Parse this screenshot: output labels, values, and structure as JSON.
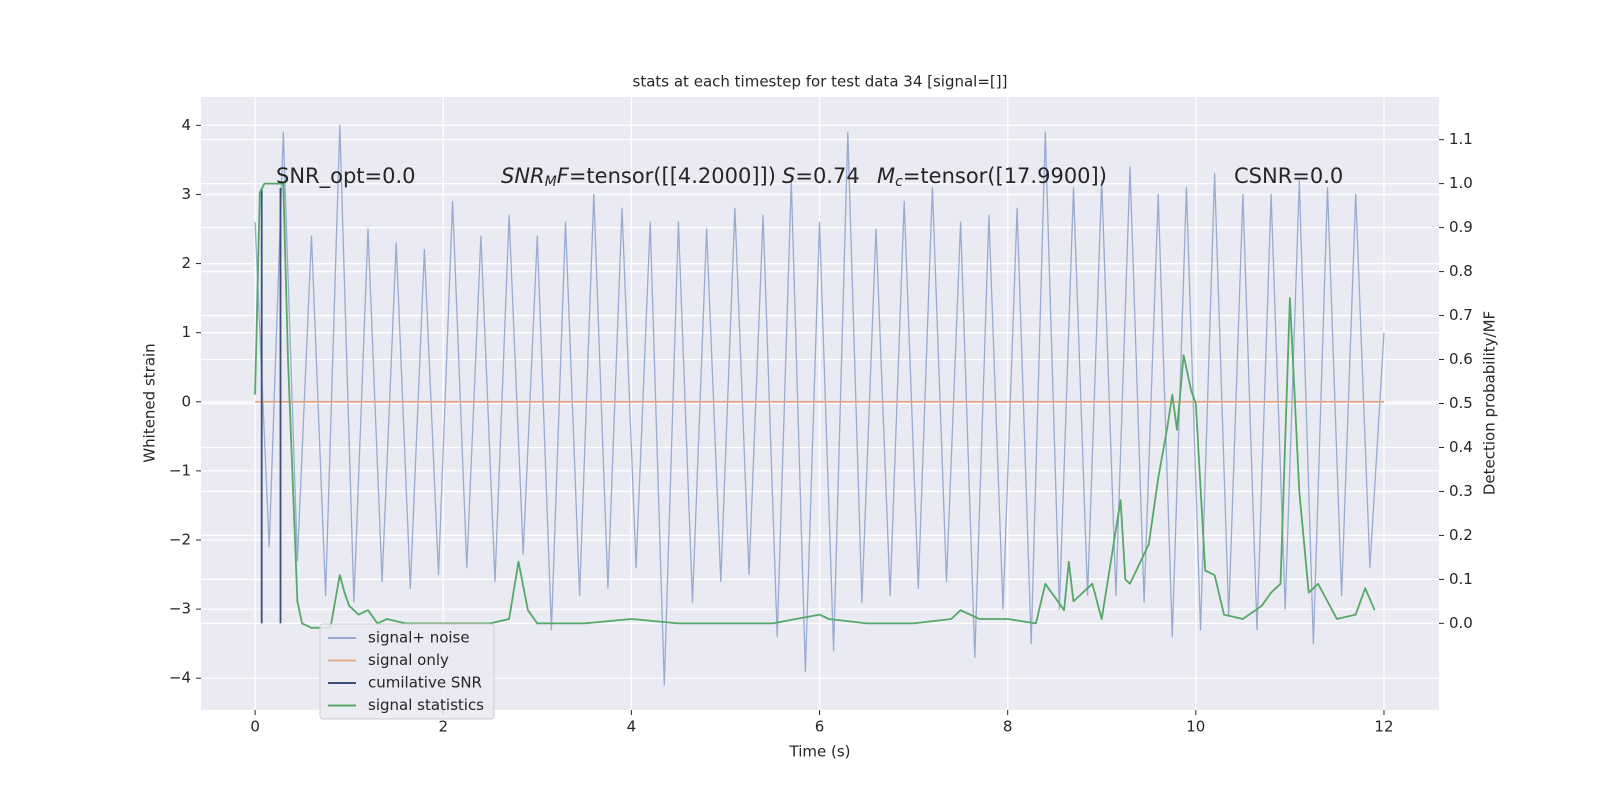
{
  "chart_data": {
    "type": "line",
    "title": "stats at each timestep for test data 34 [signal=[]]",
    "xlabel": "Time (s)",
    "ylabel": "Whitened strain",
    "y2label": "Detection probability/MF",
    "xlim": [
      -0.575,
      12.585
    ],
    "ylim": [
      -4.46,
      4.41
    ],
    "y2lim": [
      -0.197,
      1.197
    ],
    "xticks": [
      0,
      2,
      4,
      6,
      8,
      10,
      12
    ],
    "yticks": [
      {
        "value": -4,
        "label": "−4"
      },
      {
        "value": -3,
        "label": "−3"
      },
      {
        "value": -2,
        "label": "−2"
      },
      {
        "value": -1,
        "label": "−1"
      },
      0,
      1,
      2,
      3,
      4
    ],
    "y2ticks": [
      {
        "value": 0,
        "label": "0.0"
      },
      {
        "value": 0.1,
        "label": "0.1"
      },
      {
        "value": 0.2,
        "label": "0.2"
      },
      {
        "value": 0.3,
        "label": "0.3"
      },
      {
        "value": 0.4,
        "label": "0.4"
      },
      {
        "value": 0.5,
        "label": "0.5"
      },
      {
        "value": 0.6,
        "label": "0.6"
      },
      {
        "value": 0.7,
        "label": "0.7"
      },
      {
        "value": 0.8,
        "label": "0.8"
      },
      {
        "value": 0.9,
        "label": "0.9"
      },
      {
        "value": 1,
        "label": "1.0"
      },
      {
        "value": 1.1,
        "label": "1.1"
      }
    ],
    "grid": true,
    "legend": "lower left",
    "series": [
      {
        "name": "signal+ noise",
        "color": "#99abd0",
        "x": [
          0,
          0.15,
          0.3,
          0.45,
          0.6,
          0.75,
          0.9,
          1.05,
          1.2,
          1.35,
          1.5,
          1.65,
          1.8,
          1.95,
          2.1,
          2.25,
          2.4,
          2.55,
          2.7,
          2.85,
          3,
          3.15,
          3.3,
          3.45,
          3.6,
          3.75,
          3.9,
          4.05,
          4.2,
          4.35,
          4.5,
          4.65,
          4.8,
          4.95,
          5.1,
          5.25,
          5.4,
          5.55,
          5.7,
          5.85,
          6,
          6.15,
          6.3,
          6.45,
          6.6,
          6.75,
          6.9,
          7.05,
          7.2,
          7.35,
          7.5,
          7.65,
          7.8,
          7.95,
          8.1,
          8.25,
          8.4,
          8.55,
          8.7,
          8.85,
          9,
          9.15,
          9.3,
          9.45,
          9.6,
          9.75,
          9.9,
          10.05,
          10.2,
          10.35,
          10.5,
          10.65,
          10.8,
          10.95,
          11.1,
          11.25,
          11.4,
          11.55,
          11.7,
          11.85,
          12
        ],
        "values": [
          2.6,
          -2.1,
          3.9,
          -2.3,
          2.4,
          -2.8,
          4.0,
          -2.9,
          2.5,
          -2.6,
          2.3,
          -2.7,
          2.2,
          -2.5,
          2.9,
          -2.4,
          2.4,
          -2.6,
          2.7,
          -2.2,
          2.4,
          -3.3,
          2.6,
          -2.8,
          3.0,
          -2.7,
          2.8,
          -2.4,
          2.6,
          -4.1,
          2.6,
          -2.9,
          2.5,
          -2.6,
          2.8,
          -2.5,
          2.7,
          -3.4,
          3.2,
          -3.9,
          2.6,
          -3.6,
          3.9,
          -2.9,
          2.5,
          -2.8,
          2.9,
          -2.7,
          3.1,
          -2.6,
          2.6,
          -3.7,
          2.7,
          -3.0,
          2.8,
          -3.5,
          3.9,
          -3.0,
          3.1,
          -2.8,
          3.2,
          -2.8,
          3.4,
          -2.9,
          3.0,
          -3.4,
          3.1,
          -3.3,
          3.3,
          -3.1,
          3.0,
          -3.3,
          3.0,
          -3.0,
          3.2,
          -3.5,
          3.1,
          -2.8,
          3.0,
          -2.4,
          1.0
        ]
      },
      {
        "name": "signal only",
        "color": "#e3a98b",
        "x": [
          0,
          12
        ],
        "values": [
          0,
          0
        ]
      },
      {
        "name": "cumilative SNR",
        "color": "#3b4f7a",
        "axis": "y2",
        "x": [
          0.07,
          0.07,
          0.17,
          0.27,
          0.27
        ],
        "values": [
          0,
          0.99,
          null,
          0,
          0.99
        ]
      },
      {
        "name": "signal statistics",
        "color": "#55a868",
        "axis": "y2",
        "x": [
          0,
          0.05,
          0.1,
          0.2,
          0.3,
          0.35,
          0.45,
          0.5,
          0.6,
          0.8,
          0.9,
          0.95,
          1.0,
          1.1,
          1.2,
          1.3,
          1.4,
          1.6,
          2.0,
          2.5,
          2.7,
          2.8,
          2.9,
          3.0,
          3.5,
          4.0,
          4.5,
          5.0,
          5.5,
          6.0,
          6.1,
          6.5,
          7.0,
          7.4,
          7.5,
          7.7,
          8.0,
          8.3,
          8.4,
          8.6,
          8.65,
          8.7,
          8.9,
          9.0,
          9.2,
          9.25,
          9.3,
          9.5,
          9.6,
          9.7,
          9.75,
          9.8,
          9.87,
          9.95,
          10.0,
          10.1,
          10.2,
          10.3,
          10.5,
          10.7,
          10.8,
          10.9,
          11.0,
          11.1,
          11.2,
          11.3,
          11.5,
          11.7,
          11.8,
          11.9
        ],
        "values": [
          0.52,
          0.98,
          1.0,
          1.0,
          1.0,
          0.6,
          0.05,
          0.0,
          -0.01,
          -0.01,
          0.11,
          0.07,
          0.04,
          0.02,
          0.03,
          0.0,
          0.01,
          0.0,
          0.0,
          0.0,
          0.01,
          0.14,
          0.03,
          0.0,
          0.0,
          0.01,
          0.0,
          0.0,
          0.0,
          0.02,
          0.01,
          0.0,
          0.0,
          0.01,
          0.03,
          0.01,
          0.01,
          0.0,
          0.09,
          0.03,
          0.14,
          0.05,
          0.09,
          0.01,
          0.28,
          0.1,
          0.09,
          0.18,
          0.33,
          0.45,
          0.52,
          0.44,
          0.61,
          0.53,
          0.5,
          0.12,
          0.11,
          0.02,
          0.01,
          0.04,
          0.07,
          0.09,
          0.74,
          0.3,
          0.07,
          0.09,
          0.01,
          0.02,
          0.08,
          0.03
        ]
      }
    ],
    "annotations": [
      {
        "parts": [
          {
            "text": "SNR_opt=0.0"
          }
        ]
      },
      {
        "parts": [
          {
            "text": "SNR",
            "italic": true
          },
          {
            "text": "M",
            "italic": true,
            "sub": true
          },
          {
            "text": "F",
            "italic": true
          },
          {
            "text": "=tensor([[4.2000]])"
          }
        ]
      },
      {
        "parts": [
          {
            "text": "S",
            "italic": true
          },
          {
            "text": "=0.74"
          }
        ]
      },
      {
        "parts": [
          {
            "text": "M",
            "italic": true
          },
          {
            "text": "c",
            "italic": true,
            "sub": true
          },
          {
            "text": "=tensor([17.9900])"
          }
        ]
      },
      {
        "parts": [
          {
            "text": "CSNR=0.0"
          }
        ]
      }
    ]
  }
}
